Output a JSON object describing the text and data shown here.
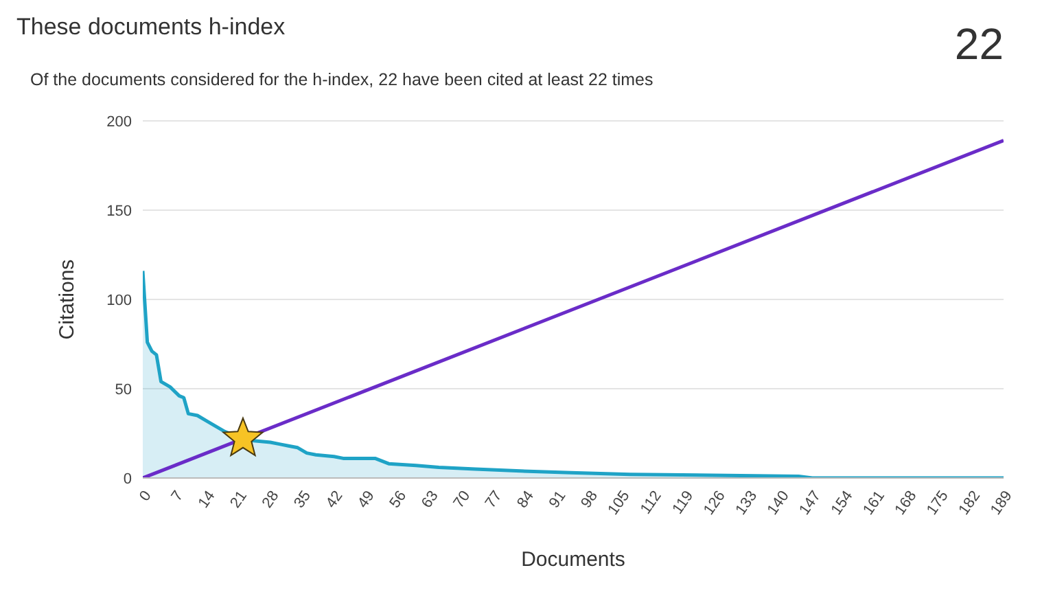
{
  "chart_data": {
    "type": "area",
    "title": "These documents h-index",
    "subtitle": "Of the documents considered for the h-index, 22 have been cited at least 22 times",
    "xlabel": "Documents",
    "ylabel": "Citations",
    "annotations": [
      "22"
    ],
    "xlim": [
      0,
      189
    ],
    "xticks": [
      0,
      7,
      14,
      21,
      28,
      35,
      42,
      49,
      56,
      63,
      70,
      77,
      84,
      91,
      98,
      105,
      112,
      119,
      126,
      133,
      140,
      147,
      154,
      161,
      168,
      175,
      182,
      189
    ],
    "ylim": [
      0,
      200
    ],
    "yticks": [
      0,
      50,
      100,
      150,
      200
    ],
    "grid": "y",
    "legend": false,
    "series": [
      {
        "color": "#1fa3c6",
        "x": [
          0,
          1,
          2,
          3,
          4,
          6,
          8,
          9,
          10,
          12,
          14,
          16,
          18,
          20,
          22,
          24,
          28,
          30,
          32,
          34,
          36,
          38,
          42,
          44,
          51,
          54,
          60,
          65,
          73,
          82,
          94,
          107,
          144,
          147,
          189
        ],
        "values": [
          116,
          76,
          71,
          69,
          54,
          51,
          46,
          45,
          36,
          35,
          32,
          29,
          26,
          24,
          22,
          21,
          20,
          19,
          18,
          17,
          14,
          13,
          12,
          11,
          11,
          8,
          7,
          6,
          5,
          4,
          3,
          2,
          1,
          0,
          0
        ]
      },
      {
        "type": "line",
        "color": "#6a2cc8",
        "x": [
          0,
          189
        ],
        "values": [
          0,
          189
        ]
      },
      {
        "type": "scatter",
        "color": "#f7c325",
        "marker": "star",
        "x": [
          22
        ],
        "values": [
          22
        ]
      }
    ]
  }
}
